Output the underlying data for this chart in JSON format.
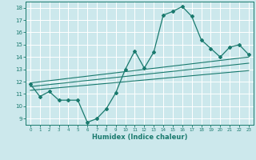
{
  "xlabel": "Humidex (Indice chaleur)",
  "background_color": "#cce8ec",
  "grid_color": "#ffffff",
  "line_color": "#1a7a6e",
  "xlim": [
    -0.5,
    23.5
  ],
  "ylim": [
    8.5,
    18.5
  ],
  "yticks": [
    9,
    10,
    11,
    12,
    13,
    14,
    15,
    16,
    17,
    18
  ],
  "xticks": [
    0,
    1,
    2,
    3,
    4,
    5,
    6,
    7,
    8,
    9,
    10,
    11,
    12,
    13,
    14,
    15,
    16,
    17,
    18,
    19,
    20,
    21,
    22,
    23
  ],
  "main_x": [
    0,
    1,
    2,
    3,
    4,
    5,
    6,
    7,
    8,
    9,
    10,
    11,
    12,
    13,
    14,
    15,
    16,
    17,
    18,
    19,
    20,
    21,
    22,
    23
  ],
  "main_y": [
    11.8,
    10.8,
    11.2,
    10.5,
    10.5,
    10.5,
    8.7,
    9.0,
    9.8,
    11.1,
    13.0,
    14.5,
    13.1,
    14.4,
    17.4,
    17.7,
    18.1,
    17.3,
    15.4,
    14.7,
    14.0,
    14.8,
    15.0,
    14.2
  ],
  "line1_x": [
    0,
    23
  ],
  "line1_y": [
    11.6,
    13.5
  ],
  "line2_x": [
    0,
    23
  ],
  "line2_y": [
    11.9,
    14.0
  ],
  "line3_x": [
    0,
    23
  ],
  "line3_y": [
    11.3,
    12.9
  ]
}
